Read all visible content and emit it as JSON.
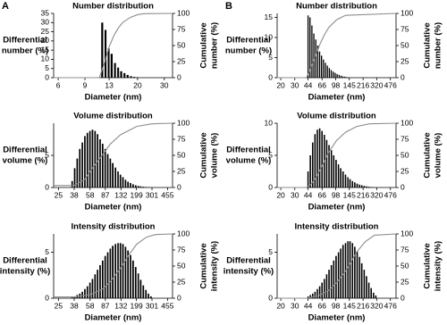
{
  "panel_labels": [
    "A",
    "B"
  ],
  "chart_data": [
    {
      "type": "bar",
      "title": "Number distribution",
      "xlabel": "Diameter (nm)",
      "ylabel": [
        "Differential",
        "number (%)"
      ],
      "y2label": [
        "Cumulative",
        "number (%)"
      ],
      "xscale": "log",
      "xlim": [
        5.6,
        34
      ],
      "xticks": [
        6,
        9,
        13,
        20,
        30
      ],
      "ylim": [
        0,
        35
      ],
      "yticks": [
        0,
        5,
        10,
        15,
        20,
        25,
        30,
        35
      ],
      "y2lim": [
        0,
        100
      ],
      "y2ticks": [
        0,
        25,
        50,
        75,
        100
      ],
      "series": [
        {
          "color": "#000000",
          "x": [
            11.7,
            12.3,
            12.9,
            13.5,
            14.2,
            14.9,
            15.6,
            16.4,
            17.2,
            18.1,
            19.0,
            20.0
          ],
          "values": [
            30,
            26,
            16,
            13,
            8,
            5.5,
            3.5,
            2.5,
            1.5,
            0.8,
            0.4,
            0.2
          ]
        },
        {
          "type": "line",
          "axis": "y2",
          "color": "#8c8c8c",
          "x": [
            5.6,
            11.2,
            12,
            13,
            14,
            15,
            16,
            18,
            20,
            22,
            34
          ],
          "values": [
            0,
            0,
            20,
            48,
            66,
            78,
            86,
            94,
            98,
            99.5,
            100
          ]
        }
      ]
    },
    {
      "type": "bar",
      "title": "Volume distribution",
      "xlabel": "Diameter (nm)",
      "ylabel": [
        "Differential",
        "volume (%)"
      ],
      "y2label": [
        "Cumulative",
        "volume (%)"
      ],
      "xscale": "log",
      "xlim": [
        22,
        520
      ],
      "xticks": [
        25,
        38,
        58,
        87,
        132,
        199,
        301,
        455
      ],
      "ylim": [
        0,
        10
      ],
      "yticks": [
        0,
        5
      ],
      "y2lim": [
        0,
        100
      ],
      "y2ticks": [
        0,
        25,
        50,
        75,
        100
      ],
      "series": [
        {
          "color": "#000000",
          "x": [
            36,
            38.5,
            41.2,
            44.1,
            47.2,
            50.5,
            54,
            57.8,
            61.8,
            66.2,
            70.8,
            75.7,
            81,
            86.7,
            92.8,
            99.3,
            106,
            114,
            122,
            130,
            139,
            149,
            159,
            170,
            182,
            195,
            209,
            223,
            239,
            256,
            274,
            293
          ],
          "values": [
            1,
            3,
            4.5,
            6,
            7,
            8,
            8.5,
            8.8,
            9.0,
            8.8,
            8.3,
            7.5,
            6.8,
            6,
            5.2,
            4.5,
            3.8,
            3.1,
            2.5,
            2,
            1.6,
            1.2,
            0.9,
            0.7,
            0.5,
            0.35,
            0.25,
            0.18,
            0.12,
            0.08,
            0.05,
            0.03
          ]
        },
        {
          "type": "line",
          "axis": "y2",
          "color": "#8c8c8c",
          "x": [
            22,
            38,
            50,
            60,
            75,
            100,
            130,
            200,
            300,
            520
          ],
          "values": [
            3,
            3,
            12,
            28,
            45,
            68,
            82,
            95,
            99,
            100
          ]
        }
      ]
    },
    {
      "type": "bar",
      "title": "Intensity distribution",
      "xlabel": "Diameter (nm)",
      "ylabel": [
        "Differential",
        "intensity (%)"
      ],
      "y2label": [
        "Cumulative",
        "intensity (%)"
      ],
      "xscale": "log",
      "xlim": [
        22,
        520
      ],
      "xticks": [
        25,
        38,
        58,
        87,
        132,
        199,
        301,
        455
      ],
      "ylim": [
        0,
        7
      ],
      "yticks": [
        0,
        5
      ],
      "y2lim": [
        0,
        100
      ],
      "y2ticks": [
        0,
        25,
        50,
        75,
        100
      ],
      "series": [
        {
          "color": "#000000",
          "x": [
            36,
            38.5,
            41.2,
            44.1,
            47.2,
            50.5,
            54,
            57.8,
            61.8,
            66.2,
            70.8,
            75.7,
            81,
            86.7,
            92.8,
            99.3,
            106,
            114,
            122,
            130,
            139,
            149,
            159,
            170,
            182,
            195,
            209,
            223,
            239,
            256,
            274,
            293
          ],
          "values": [
            0.1,
            0.2,
            0.35,
            0.5,
            0.7,
            1.0,
            1.3,
            1.7,
            2.1,
            2.6,
            3.1,
            3.6,
            4.1,
            4.6,
            5.0,
            5.4,
            5.7,
            5.9,
            6.0,
            6.0,
            5.9,
            5.6,
            5.2,
            4.7,
            4.1,
            3.4,
            2.7,
            2.0,
            1.4,
            0.9,
            0.5,
            0.2
          ]
        },
        {
          "type": "line",
          "axis": "y2",
          "color": "#8c8c8c",
          "x": [
            22,
            38,
            60,
            80,
            100,
            132,
            160,
            200,
            260,
            330,
            520
          ],
          "values": [
            2,
            2,
            6,
            14,
            26,
            48,
            66,
            84,
            95,
            99,
            100
          ]
        }
      ]
    },
    {
      "type": "bar",
      "title": "Number distribution",
      "xlabel": "Diameter (nm)",
      "ylabel": [
        "Differential",
        "number (%)"
      ],
      "y2label": [
        "Cumulative",
        "number (%)"
      ],
      "xscale": "log",
      "xlim": [
        18,
        560
      ],
      "xticks": [
        20,
        30,
        44,
        66,
        98,
        145,
        216,
        320,
        476
      ],
      "ylim": [
        0,
        16
      ],
      "yticks": [
        0,
        5,
        10,
        15
      ],
      "y2lim": [
        0,
        100
      ],
      "y2ticks": [
        0,
        25,
        50,
        75,
        100
      ],
      "series": [
        {
          "color": "#000000",
          "x": [
            44,
            46.5,
            49.2,
            52,
            55,
            58.2,
            61.5,
            65,
            68.8,
            72.8,
            77,
            81.4,
            86,
            91,
            96.3,
            102,
            108,
            114,
            120,
            127,
            134,
            142
          ],
          "values": [
            15.5,
            15,
            13,
            11,
            9.5,
            8,
            6.5,
            5.5,
            4.5,
            3.7,
            3,
            2.4,
            1.9,
            1.5,
            1.2,
            0.9,
            0.7,
            0.5,
            0.35,
            0.25,
            0.15,
            0.1
          ]
        },
        {
          "type": "line",
          "axis": "y2",
          "color": "#8c8c8c",
          "x": [
            18,
            42,
            46,
            50,
            55,
            62,
            70,
            80,
            100,
            130,
            560
          ],
          "values": [
            0,
            0,
            10,
            22,
            35,
            52,
            66,
            78,
            90,
            97,
            100
          ]
        }
      ]
    },
    {
      "type": "bar",
      "title": "Volume distribution",
      "xlabel": "Diameter (nm)",
      "ylabel": [
        "Differential",
        "volume (%)"
      ],
      "y2label": [
        "Cumulative",
        "volume (%)"
      ],
      "xscale": "log",
      "xlim": [
        18,
        560
      ],
      "xticks": [
        20,
        30,
        44,
        66,
        98,
        145,
        216,
        320,
        476
      ],
      "ylim": [
        0,
        10
      ],
      "yticks": [
        0,
        5,
        10
      ],
      "y2lim": [
        0,
        100
      ],
      "y2ticks": [
        0,
        25,
        50,
        75,
        100
      ],
      "series": [
        {
          "color": "#000000",
          "x": [
            44,
            47,
            50.3,
            53.8,
            57.6,
            61.6,
            65.9,
            70.5,
            75.4,
            80.7,
            86.4,
            92.4,
            98.9,
            106,
            113,
            121,
            130,
            139,
            148,
            159,
            170,
            182,
            195,
            208,
            223,
            238,
            255,
            273,
            292
          ],
          "values": [
            2.5,
            5,
            7,
            8.3,
            9.0,
            9.2,
            8.8,
            8.2,
            7.4,
            6.6,
            5.8,
            5.0,
            4.3,
            3.6,
            3.0,
            2.5,
            2.0,
            1.6,
            1.3,
            1.0,
            0.8,
            0.6,
            0.45,
            0.35,
            0.25,
            0.18,
            0.12,
            0.08,
            0.05
          ]
        },
        {
          "type": "line",
          "axis": "y2",
          "color": "#8c8c8c",
          "x": [
            18,
            42,
            48,
            55,
            65,
            80,
            100,
            130,
            180,
            260,
            560
          ],
          "values": [
            0,
            0,
            5,
            15,
            32,
            55,
            73,
            86,
            95,
            99,
            100
          ]
        }
      ]
    },
    {
      "type": "bar",
      "title": "Intensity distribution",
      "xlabel": "Diameter (nm)",
      "ylabel": [
        "Differential",
        "intensity (%)"
      ],
      "y2label": [
        "Cumulative",
        "intensity (%)"
      ],
      "xscale": "log",
      "xlim": [
        18,
        560
      ],
      "xticks": [
        20,
        30,
        44,
        66,
        98,
        145,
        216,
        320,
        476
      ],
      "ylim": [
        0,
        7
      ],
      "yticks": [
        0,
        5
      ],
      "y2lim": [
        0,
        100
      ],
      "y2ticks": [
        0,
        25,
        50,
        75,
        100
      ],
      "series": [
        {
          "color": "#000000",
          "x": [
            44,
            47,
            50.3,
            53.8,
            57.6,
            61.6,
            65.9,
            70.5,
            75.4,
            80.7,
            86.4,
            92.4,
            98.9,
            106,
            113,
            121,
            130,
            139,
            148,
            159,
            170,
            182,
            195,
            208,
            223,
            238,
            255,
            273,
            292,
            312
          ],
          "values": [
            0.2,
            0.35,
            0.5,
            0.7,
            1.0,
            1.3,
            1.7,
            2.1,
            2.6,
            3.1,
            3.6,
            4.1,
            4.6,
            5.0,
            5.4,
            5.8,
            6.0,
            6.2,
            6.2,
            6.0,
            5.6,
            5.1,
            4.5,
            3.8,
            3.1,
            2.4,
            1.7,
            1.1,
            0.6,
            0.3
          ]
        },
        {
          "type": "line",
          "axis": "y2",
          "color": "#8c8c8c",
          "x": [
            18,
            42,
            60,
            80,
            100,
            130,
            150,
            180,
            230,
            300,
            560
          ],
          "values": [
            0,
            0,
            4,
            12,
            24,
            42,
            55,
            72,
            88,
            98,
            100
          ]
        }
      ]
    }
  ]
}
